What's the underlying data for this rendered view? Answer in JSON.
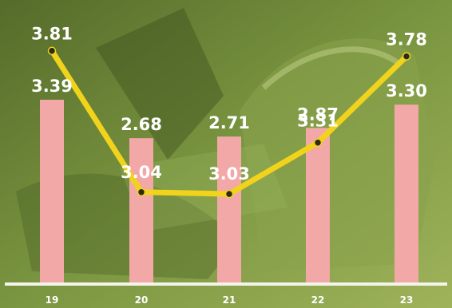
{
  "chart_data": {
    "type": "bar",
    "categories": [
      "19",
      "20",
      "21",
      "22",
      "23"
    ],
    "series": [
      {
        "type": "bar",
        "values": [
          3.39,
          2.68,
          2.71,
          2.87,
          3.3
        ],
        "labels": [
          "3.39",
          "2.68",
          "2.71",
          "2.87",
          "3.30"
        ]
      },
      {
        "type": "line",
        "values": [
          3.81,
          3.04,
          3.03,
          3.31,
          3.78
        ],
        "labels": [
          "3.81",
          "3.04",
          "3.03",
          "3.31",
          "3.78"
        ]
      }
    ],
    "colors": {
      "bar": "#f3a8a8",
      "line": "#f1d31c",
      "marker": "#2b2b1a",
      "axis": "#f4f4ec",
      "text": "#ffffff"
    },
    "grid": false
  }
}
